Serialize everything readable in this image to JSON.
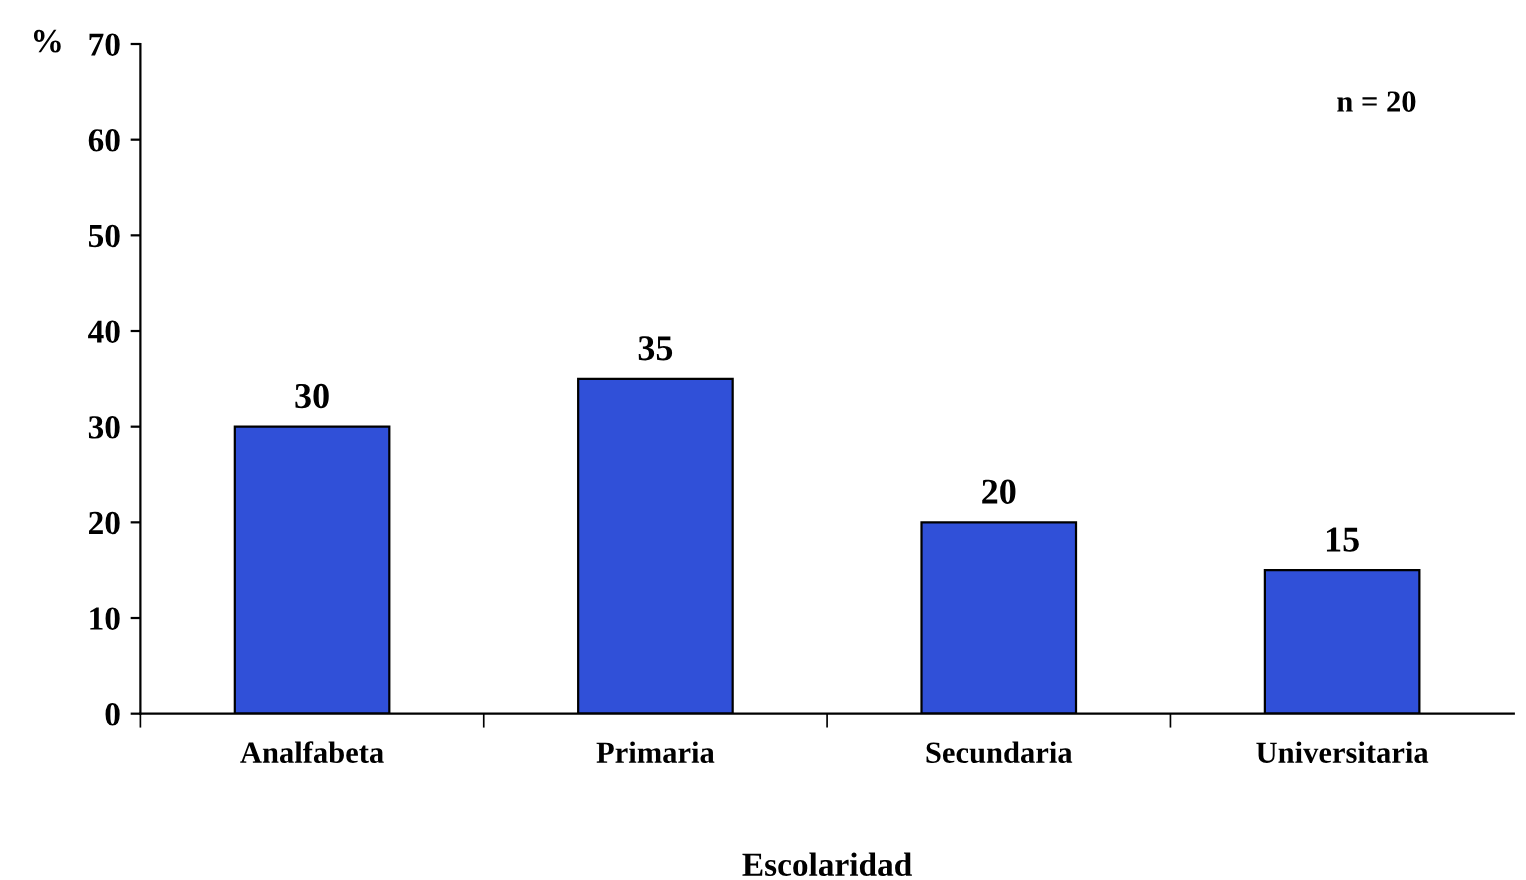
{
  "chart_data": {
    "type": "bar",
    "xlabel": "Escolaridad",
    "ylabel": "%",
    "categories": [
      "Analfabeta",
      "Primaria",
      "Secundaria",
      "Universitaria"
    ],
    "values": [
      30,
      35,
      20,
      15
    ],
    "color": "#3050d8",
    "ylim": [
      0,
      70
    ],
    "yticks": [
      0,
      10,
      20,
      30,
      40,
      50,
      60,
      70
    ],
    "grid": false,
    "data_labels": true,
    "annotations": [
      "n = 20"
    ]
  }
}
